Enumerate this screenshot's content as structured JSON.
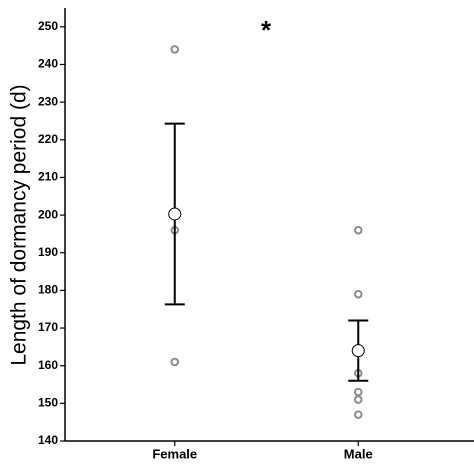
{
  "chart_data": {
    "type": "dot",
    "ylabel": "Length of dormancy period (d)",
    "annotation": "*",
    "categories": [
      "Female",
      "Male"
    ],
    "points": [
      [
        244,
        196,
        161
      ],
      [
        196,
        179,
        158,
        153,
        151,
        147
      ]
    ],
    "means": [
      200.3,
      164
    ],
    "errors": [
      24,
      8
    ],
    "point_color": "#8c8c8c",
    "ylim": [
      140,
      255
    ],
    "yticks": [
      140,
      150,
      160,
      170,
      180,
      190,
      200,
      210,
      220,
      230,
      240,
      250
    ]
  }
}
